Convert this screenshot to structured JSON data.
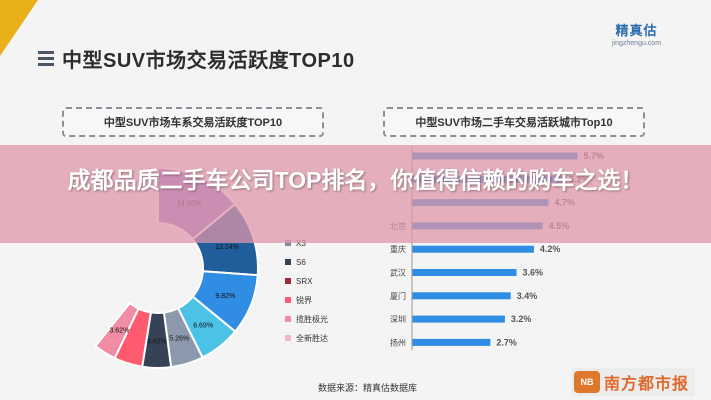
{
  "page": {
    "brand_title": "精真估",
    "brand_site": "jingzhengu.com",
    "title": "中型SUV市场交易活跃度TOP10",
    "left_panel_title": "中型SUV市场车系交易活跃度TOP10",
    "right_panel_title": "中型SUV市场二手车交易活跃城市Top10",
    "banner_text": "成都品质二手车公司TOP排名，你值得信赖的购车之选！",
    "source": "数据来源：精真估数据库",
    "watermark_badge": "NB",
    "watermark": "南方都市报"
  },
  "colors": {
    "corner": "#e8b11c",
    "bar": "#2f8de4",
    "value_label": "#555555",
    "banner": "#de96a8"
  },
  "chart_data": [
    {
      "type": "pie",
      "title": "中型SUV市场车系交易活跃度TOP10",
      "inner_radius_ratio": 0.45,
      "slices": [
        {
          "label": "",
          "value": 14.0,
          "value_label": "14.00%",
          "color": "#9177cf"
        },
        {
          "label": "",
          "value": 12.14,
          "value_label": "12.14%",
          "color": "#1f5e9b"
        },
        {
          "label": "",
          "value": 9.82,
          "value_label": "9.82%",
          "color": "#2f8de4"
        },
        {
          "label": "",
          "value": 6.69,
          "value_label": "6.69%",
          "color": "#4cc3e6"
        },
        {
          "label": "",
          "value": 5.26,
          "value_label": "5.26%",
          "color": "#8c99ad"
        },
        {
          "label": "",
          "value": 4.62,
          "value_label": "4.62%",
          "color": "#364356"
        },
        {
          "label": "",
          "value": 4.6,
          "value_label": "",
          "color": "#ff5a6e"
        },
        {
          "label": "",
          "value": 3.62,
          "value_label": "3.62%",
          "color": "#f08ca4"
        }
      ],
      "legend": {
        "placement": "right",
        "entries": [
          {
            "label": "X3",
            "color": "#7f8aa0"
          },
          {
            "label": "S6",
            "color": "#364356"
          },
          {
            "label": "SRX",
            "color": "#a02a3a"
          },
          {
            "label": "锐界",
            "color": "#ff5a6e"
          },
          {
            "label": "揽胜极光",
            "color": "#f08ca4"
          },
          {
            "label": "全新胜达",
            "color": "#f5b6c6"
          }
        ]
      }
    },
    {
      "type": "bar",
      "orientation": "horizontal",
      "title": "中型SUV市场二手车交易活跃城市Top10",
      "categories": [
        "",
        "",
        "",
        "北京",
        "重庆",
        "武汉",
        "厦门",
        "深圳",
        "扬州"
      ],
      "values": [
        5.7,
        5.2,
        4.7,
        4.5,
        4.2,
        3.6,
        3.4,
        3.2,
        2.7
      ],
      "value_labels": [
        "5.7%",
        "5.2%",
        "4.7%",
        "4.5%",
        "4.2%",
        "3.6%",
        "3.4%",
        "3.2%",
        "2.7%"
      ],
      "xlim": [
        0,
        6.2
      ],
      "grid": false
    }
  ]
}
